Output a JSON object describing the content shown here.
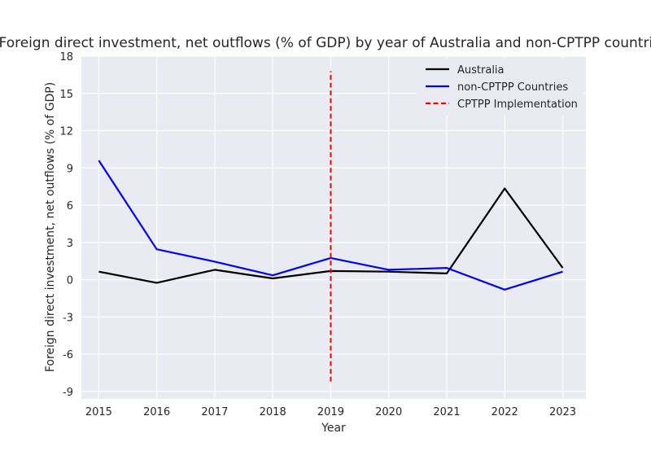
{
  "chart_data": {
    "type": "line",
    "title": "Foreign direct investment, net outflows (% of GDP) by year of Australia and non-CPTPP countries",
    "xlabel": "Year",
    "ylabel": "Foreign direct investment, net outflows (% of GDP)",
    "x": [
      2015,
      2016,
      2017,
      2018,
      2019,
      2020,
      2021,
      2022,
      2023
    ],
    "xlim": [
      2014.7,
      2023.4
    ],
    "ylim": [
      -9.6,
      18
    ],
    "yticks": [
      -9,
      -6,
      -3,
      0,
      3,
      6,
      9,
      12,
      15,
      18
    ],
    "series": [
      {
        "name": "Australia",
        "color": "#000000",
        "values": [
          0.65,
          -0.25,
          0.8,
          0.1,
          0.7,
          0.65,
          0.5,
          7.35,
          0.95
        ]
      },
      {
        "name": "non-CPTPP Countries",
        "color": "#0000ff",
        "values": [
          9.6,
          2.45,
          1.45,
          0.35,
          1.75,
          0.8,
          0.95,
          -0.8,
          0.65
        ]
      }
    ],
    "annotations": [
      {
        "type": "vline",
        "name": "CPTPP Implementation",
        "x": 2019,
        "y_range": [
          -8.2,
          16.8
        ],
        "color": "#ff0000",
        "style": "dashed"
      }
    ],
    "grid": true,
    "legend_position": "top-right"
  }
}
